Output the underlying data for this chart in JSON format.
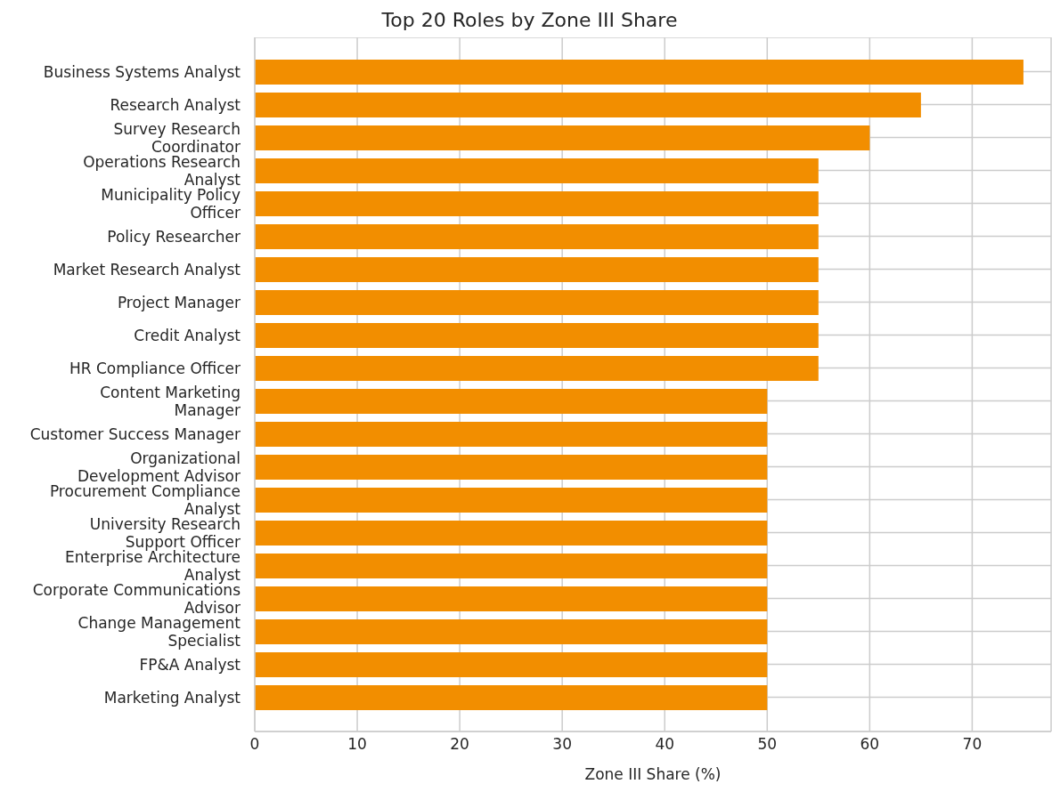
{
  "chart_data": {
    "type": "bar",
    "orientation": "horizontal",
    "title": "Top 20 Roles by Zone III Share",
    "xlabel": "Zone III Share (%)",
    "categories": [
      "Business Systems Analyst",
      "Research Analyst",
      "Survey Research Coordinator",
      "Operations Research Analyst",
      "Municipality Policy Officer",
      "Policy Researcher",
      "Market Research Analyst",
      "Project Manager",
      "Credit Analyst",
      "HR Compliance Officer",
      "Content Marketing Manager",
      "Customer Success Manager",
      "Organizational Development Advisor",
      "Procurement Compliance Analyst",
      "University Research Support Officer",
      "Enterprise Architecture Analyst",
      "Corporate Communications Advisor",
      "Change Management Specialist",
      "FP&A Analyst",
      "Marketing Analyst"
    ],
    "values": [
      75,
      65,
      60,
      55,
      55,
      55,
      55,
      55,
      55,
      55,
      50,
      50,
      50,
      50,
      50,
      50,
      50,
      50,
      50,
      50
    ],
    "color": "#f28e00",
    "xlim": [
      0,
      77.7
    ],
    "xticks": [
      0,
      10,
      20,
      30,
      40,
      50,
      60,
      70
    ],
    "grid": true
  }
}
